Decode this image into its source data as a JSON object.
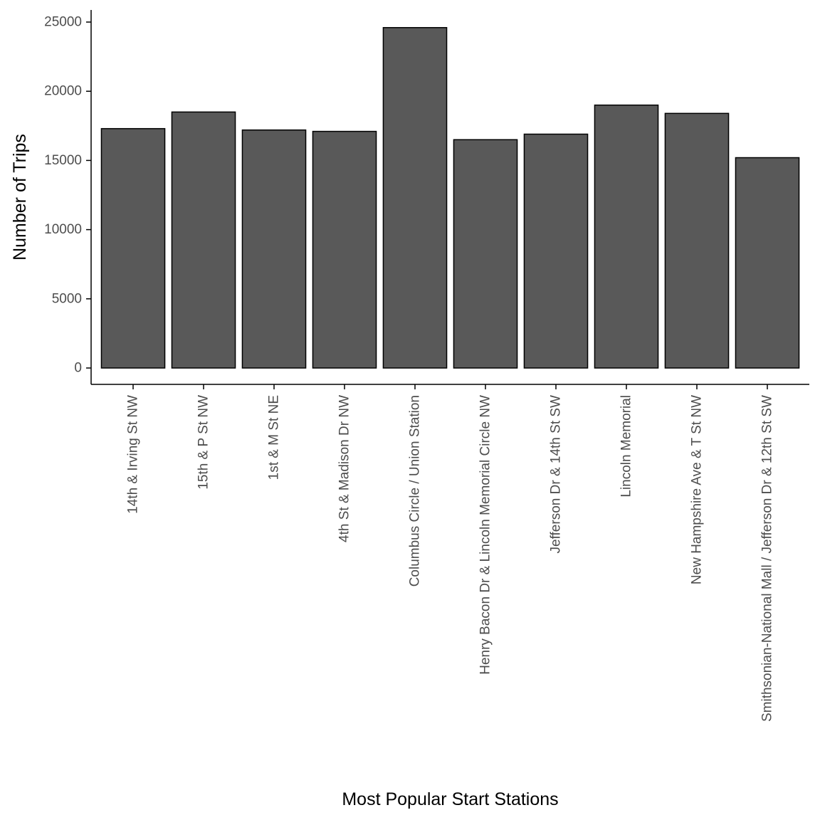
{
  "chart_data": {
    "type": "bar",
    "title": "",
    "xlabel": "Most Popular Start Stations",
    "ylabel": "Number of Trips",
    "categories": [
      "14th & Irving St NW",
      "15th & P St NW",
      "1st & M St NE",
      "4th St & Madison Dr NW",
      "Columbus Circle / Union Station",
      "Henry Bacon Dr & Lincoln Memorial Circle NW",
      "Jefferson Dr & 14th St SW",
      "Lincoln Memorial",
      "New Hampshire Ave & T St NW",
      "Smithsonian-National Mall / Jefferson Dr & 12th St SW"
    ],
    "values": [
      17300,
      18500,
      17200,
      17100,
      24600,
      16500,
      16900,
      19000,
      18400,
      15200
    ],
    "ylim": [
      0,
      25000
    ],
    "yticks": [
      0,
      5000,
      10000,
      15000,
      20000,
      25000
    ],
    "ytick_labels": [
      "0",
      "5000",
      "10000",
      "15000",
      "20000",
      "25000"
    ],
    "grid": false,
    "legend": "none",
    "colors": {
      "bar_fill": "#595959",
      "bar_stroke": "#000000",
      "axis": "#000000",
      "tick_text": "#4d4d4d"
    }
  }
}
